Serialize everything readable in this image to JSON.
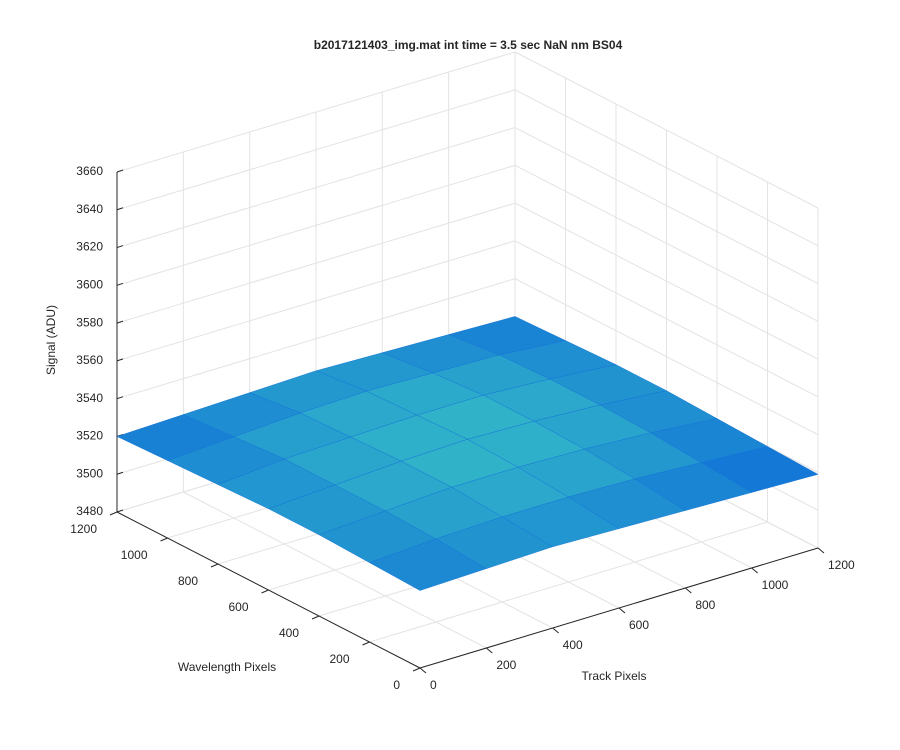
{
  "chart_data": {
    "type": "surface",
    "title": "b2017121403_img.mat int time = 3.5 sec  NaN nm BS04",
    "x_label": "Track Pixels",
    "y_label": "Wavelength Pixels",
    "z_label": "Signal (ADU)",
    "x": [
      0,
      200,
      400,
      600,
      800,
      1000,
      1200
    ],
    "y": [
      0,
      200,
      400,
      600,
      800,
      1000,
      1200
    ],
    "z": [
      [
        3521,
        3522,
        3523,
        3522,
        3521,
        3520,
        3519
      ],
      [
        3522,
        3524,
        3525,
        3525,
        3524,
        3522,
        3520
      ],
      [
        3523,
        3525,
        3527,
        3527,
        3526,
        3524,
        3521
      ],
      [
        3523,
        3525,
        3527,
        3528,
        3527,
        3525,
        3522
      ],
      [
        3522,
        3525,
        3526,
        3527,
        3527,
        3525,
        3522
      ],
      [
        3521,
        3523,
        3525,
        3526,
        3525,
        3524,
        3521
      ],
      [
        3520,
        3521,
        3522,
        3523,
        3522,
        3521,
        3520
      ]
    ],
    "colors": [
      "#0f6fd8",
      "#33b8c8"
    ],
    "xlim": [
      0,
      1200
    ],
    "ylim": [
      0,
      1200
    ],
    "zlim": [
      3480,
      3660
    ],
    "xticks": [
      0,
      200,
      400,
      600,
      800,
      1000,
      1200
    ],
    "yticks": [
      0,
      200,
      400,
      600,
      800,
      1000,
      1200
    ],
    "zticks": [
      3480,
      3500,
      3520,
      3540,
      3560,
      3580,
      3600,
      3620,
      3640,
      3660
    ],
    "grid": true
  }
}
